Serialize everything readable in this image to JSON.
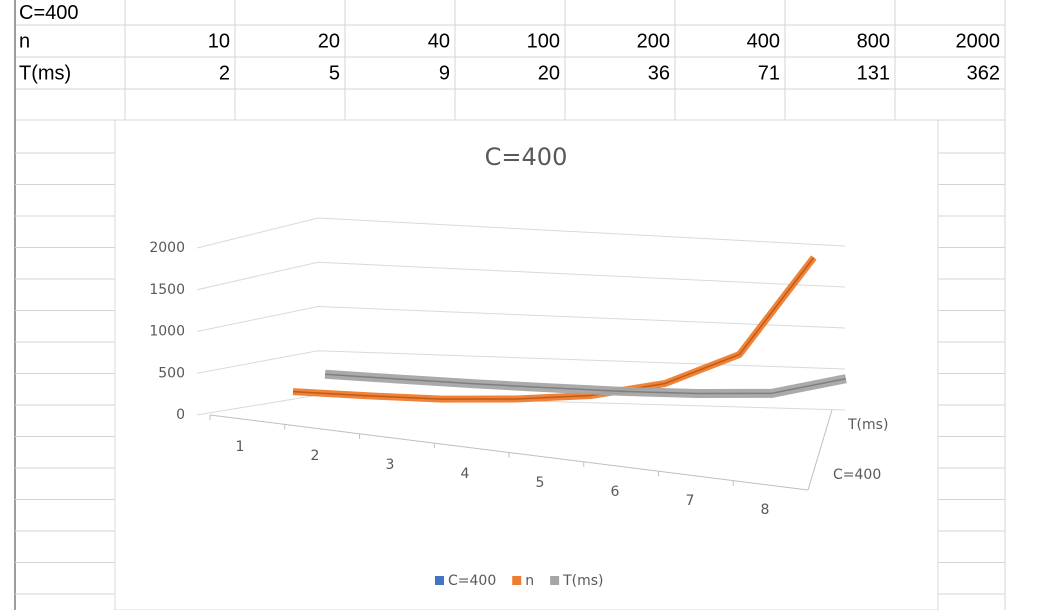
{
  "table": {
    "rows": [
      [
        "C=400"
      ],
      [
        "n",
        "10",
        "20",
        "40",
        "100",
        "200",
        "400",
        "800",
        "2000"
      ],
      [
        "T(ms)",
        "2",
        "5",
        "9",
        "20",
        "36",
        "71",
        "131",
        "362"
      ]
    ]
  },
  "chart_data": {
    "type": "line3d",
    "title": "C=400",
    "categories": [
      "1",
      "2",
      "3",
      "4",
      "5",
      "6",
      "7",
      "8"
    ],
    "series": [
      {
        "name": "C=400",
        "color": "#4472c4",
        "values": [
          null,
          null,
          null,
          null,
          null,
          null,
          null,
          null
        ]
      },
      {
        "name": "n",
        "color": "#ed7d31",
        "values": [
          10,
          20,
          40,
          100,
          200,
          400,
          800,
          2000
        ]
      },
      {
        "name": "T(ms)",
        "color": "#a5a5a5",
        "values": [
          2,
          5,
          9,
          20,
          36,
          71,
          131,
          362
        ]
      }
    ],
    "ylim": [
      0,
      2000
    ],
    "yticks": [
      0,
      500,
      1000,
      1500,
      2000
    ],
    "grid": true,
    "legend": "bottom"
  }
}
